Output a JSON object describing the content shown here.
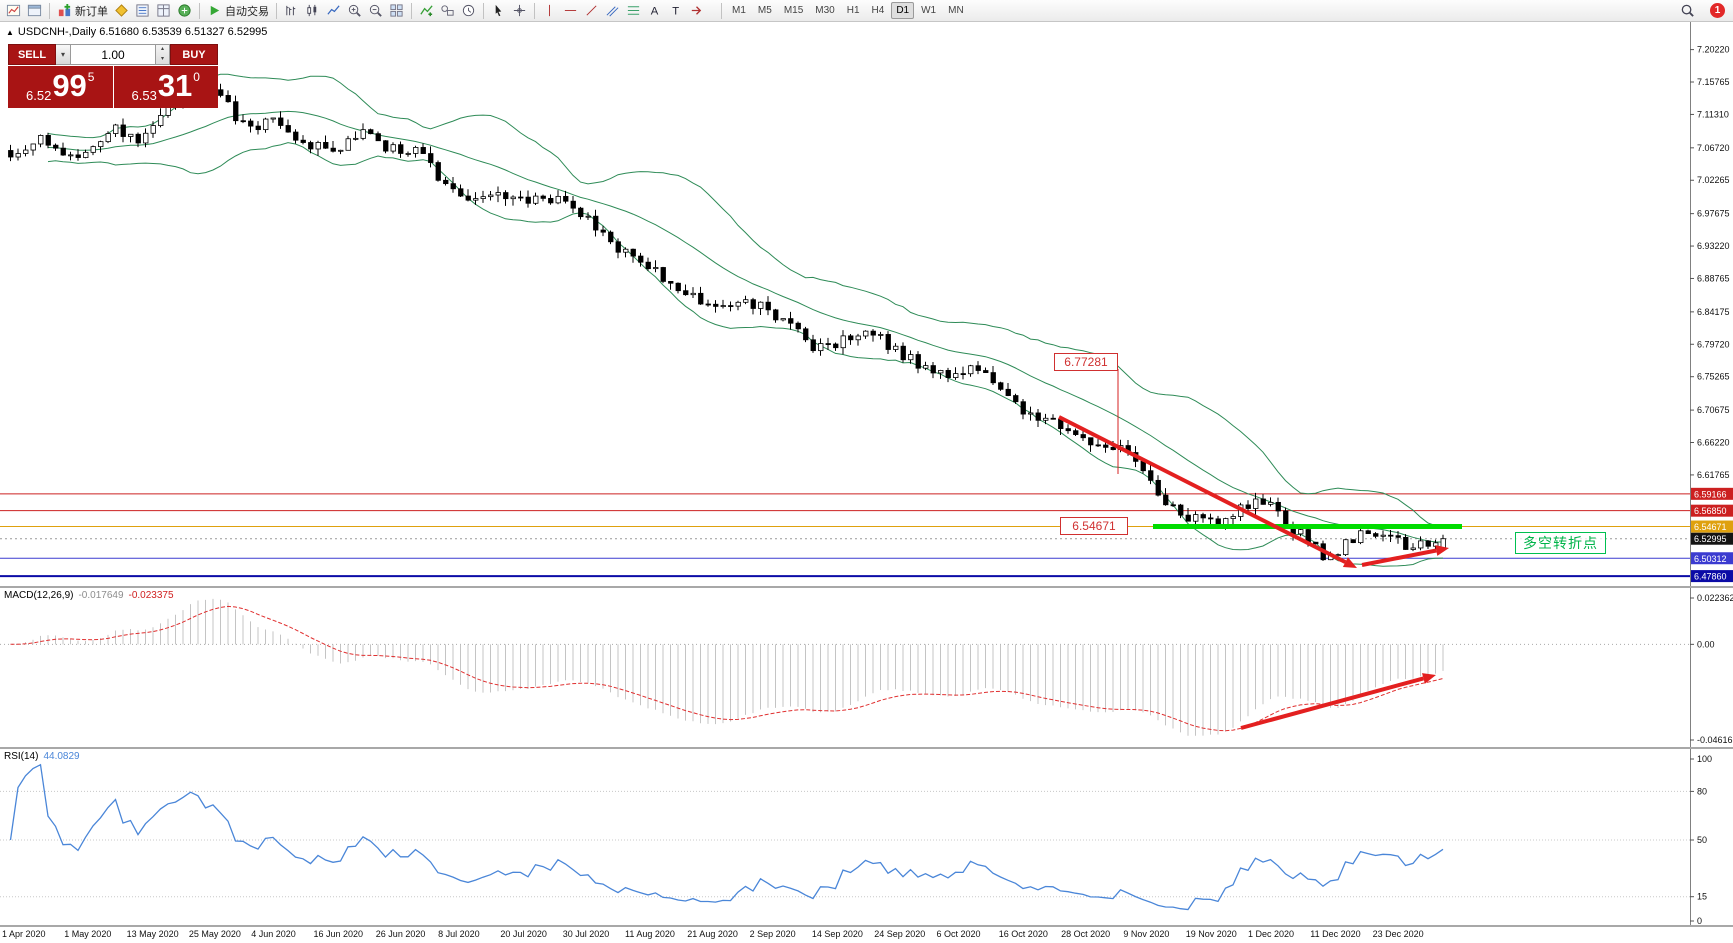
{
  "app": {
    "badge_count": "1"
  },
  "toolbar": {
    "groups": [
      {
        "items": [
          {
            "icon": "new-chart",
            "name": "new-chart-button"
          },
          {
            "icon": "chart-window",
            "name": "chart-profiles-button"
          }
        ]
      },
      {
        "items": [
          {
            "icon": "new-order",
            "name": "new-order-button",
            "label": "新订单"
          },
          {
            "icon": "mql",
            "name": "mql-market-button"
          },
          {
            "icon": "market-watch",
            "name": "market-watch-button"
          },
          {
            "icon": "data-window",
            "name": "data-window-button"
          },
          {
            "icon": "terminal",
            "name": "terminal-button"
          }
        ]
      },
      {
        "items": [
          {
            "icon": "autotrade",
            "name": "auto-trading-button",
            "label": "自动交易"
          }
        ]
      },
      {
        "items": [
          {
            "icon": "bars-type",
            "name": "bar-chart-type-button"
          },
          {
            "icon": "candles-type",
            "name": "candle-chart-type-button"
          },
          {
            "icon": "line-type",
            "name": "line-chart-type-button"
          },
          {
            "icon": "zoom-in",
            "name": "zoom-in-button"
          },
          {
            "icon": "zoom-out",
            "name": "zoom-out-button"
          },
          {
            "icon": "tile-windows",
            "name": "tile-windows-button"
          }
        ]
      },
      {
        "items": [
          {
            "icon": "indicators",
            "name": "indicators-button"
          },
          {
            "icon": "objects",
            "name": "objects-list-button"
          },
          {
            "icon": "clock",
            "name": "period-converter-button"
          }
        ]
      },
      {
        "items": [
          {
            "icon": "cursor",
            "name": "cursor-tool-button"
          },
          {
            "icon": "crosshair",
            "name": "crosshair-tool-button"
          }
        ]
      },
      {
        "items": [
          {
            "icon": "vline",
            "name": "vertical-line-tool-button"
          },
          {
            "icon": "hline",
            "name": "horizontal-line-tool-button"
          },
          {
            "icon": "trendline",
            "name": "trendline-tool-button"
          },
          {
            "icon": "channel",
            "name": "channel-tool-button"
          },
          {
            "icon": "fibo",
            "name": "fibonacci-tool-button"
          },
          {
            "icon": "text",
            "name": "text-tool-button"
          },
          {
            "icon": "label",
            "name": "label-tool-button"
          },
          {
            "icon": "arrows",
            "name": "arrows-tool-button"
          }
        ]
      }
    ],
    "timeframes": [
      "M1",
      "M5",
      "M15",
      "M30",
      "H1",
      "H4",
      "D1",
      "W1",
      "MN"
    ],
    "active_timeframe": "D1"
  },
  "symbol_bar": {
    "collapse_icon": "▲",
    "text": "USDCNH-,Daily 6.51680 6.53539 6.51327 6.52995"
  },
  "trade_panel": {
    "sell_label": "SELL",
    "buy_label": "BUY",
    "volume": "1.00",
    "dropdown_icon": "▾",
    "up_icon": "▴",
    "down_icon": "▾",
    "sell_price": {
      "big": "6.52",
      "large": "99",
      "sup": "5"
    },
    "buy_price": {
      "big": "6.53",
      "large": "31",
      "sup": "0"
    }
  },
  "chart_data": {
    "type": "candlestick",
    "symbol": "USDCNH-",
    "timeframe": "Daily",
    "last_ohlc": {
      "open": 6.5168,
      "high": 6.53539,
      "low": 6.51327,
      "close": 6.52995
    },
    "current_price": 6.52995,
    "num_candles": 192,
    "price_ticks": [
      "7.20220",
      "7.15765",
      "7.11310",
      "7.06720",
      "7.02265",
      "6.97675",
      "6.93220",
      "6.88765",
      "6.84175",
      "6.79720",
      "6.75265",
      "6.70675",
      "6.66220",
      "6.61765"
    ],
    "axis_labels": [
      {
        "text": "6.59166",
        "bg": "#cc2020"
      },
      {
        "text": "6.56850",
        "bg": "#cc2020"
      },
      {
        "text": "6.54671",
        "bg": "#dfa10e"
      },
      {
        "text": "6.52995",
        "bg": "#141414"
      },
      {
        "text": "6.50312",
        "bg": "#3b3bd0"
      },
      {
        "text": "6.47860",
        "bg": "#0b0ba6"
      }
    ],
    "levels": [
      {
        "price": 6.59166,
        "color": "#cc2020",
        "width": 1
      },
      {
        "price": 6.5685,
        "color": "#cc2020",
        "width": 1
      },
      {
        "price": 6.54671,
        "color": "#dfa10e",
        "width": 1
      },
      {
        "price": 6.50312,
        "color": "#3b3bd0",
        "width": 1
      },
      {
        "price": 6.4786,
        "color": "#0b0ba6",
        "width": 2
      }
    ],
    "trend_anchors": [
      [
        0,
        7.062
      ],
      [
        0.02,
        7.08
      ],
      [
        0.04,
        7.05
      ],
      [
        0.055,
        7.065
      ],
      [
        0.075,
        7.095
      ],
      [
        0.09,
        7.075
      ],
      [
        0.11,
        7.125
      ],
      [
        0.13,
        7.155
      ],
      [
        0.15,
        7.13
      ],
      [
        0.165,
        7.09
      ],
      [
        0.185,
        7.105
      ],
      [
        0.205,
        7.075
      ],
      [
        0.225,
        7.065
      ],
      [
        0.245,
        7.09
      ],
      [
        0.26,
        7.07
      ],
      [
        0.285,
        7.06
      ],
      [
        0.3,
        7.022
      ],
      [
        0.32,
        6.998
      ],
      [
        0.34,
        7.01
      ],
      [
        0.36,
        6.99
      ],
      [
        0.38,
        7.0
      ],
      [
        0.4,
        6.972
      ],
      [
        0.42,
        6.935
      ],
      [
        0.44,
        6.912
      ],
      [
        0.46,
        6.88
      ],
      [
        0.48,
        6.858
      ],
      [
        0.5,
        6.843
      ],
      [
        0.52,
        6.855
      ],
      [
        0.54,
        6.83
      ],
      [
        0.56,
        6.79
      ],
      [
        0.58,
        6.8
      ],
      [
        0.6,
        6.815
      ],
      [
        0.615,
        6.79
      ],
      [
        0.635,
        6.768
      ],
      [
        0.655,
        6.752
      ],
      [
        0.675,
        6.765
      ],
      [
        0.695,
        6.722
      ],
      [
        0.715,
        6.7
      ],
      [
        0.735,
        6.685
      ],
      [
        0.755,
        6.66
      ],
      [
        0.775,
        6.65
      ],
      [
        0.79,
        6.625
      ],
      [
        0.805,
        6.58
      ],
      [
        0.82,
        6.56
      ],
      [
        0.84,
        6.548
      ],
      [
        0.86,
        6.575
      ],
      [
        0.875,
        6.585
      ],
      [
        0.89,
        6.55
      ],
      [
        0.905,
        6.528
      ],
      [
        0.918,
        6.505
      ],
      [
        0.932,
        6.522
      ],
      [
        0.948,
        6.54
      ],
      [
        0.962,
        6.528
      ],
      [
        0.978,
        6.518
      ],
      [
        1,
        6.53
      ]
    ],
    "annotations": {
      "prior_high": {
        "text": "6.77281"
      },
      "support": {
        "text": "6.54671",
        "price": 6.54671
      },
      "turning_point": {
        "text": "多空转折点"
      }
    },
    "time_labels": [
      "1 Apr 2020",
      "1 May 2020",
      "13 May 2020",
      "25 May 2020",
      "4 Jun 2020",
      "16 Jun 2020",
      "26 Jun 2020",
      "8 Jul 2020",
      "20 Jul 2020",
      "30 Jul 2020",
      "11 Aug 2020",
      "21 Aug 2020",
      "2 Sep 2020",
      "14 Sep 2020",
      "24 Sep 2020",
      "6 Oct 2020",
      "16 Oct 2020",
      "28 Oct 2020",
      "9 Nov 2020",
      "19 Nov 2020",
      "1 Dec 2020",
      "11 Dec 2020",
      "23 Dec 2020"
    ],
    "indicators": {
      "bollinger": {
        "name": "Bollinger Bands",
        "period": 20,
        "deviation": 2,
        "color": "#2e8b57"
      },
      "macd": {
        "label": "MACD(12,26,9)",
        "value": "-0.017649",
        "signal": "-0.023375",
        "max": 0.022362,
        "min": -0.046165,
        "scale": [
          "0.022362",
          "0.00",
          "-0.046165"
        ]
      },
      "rsi": {
        "label": "RSI(14)",
        "value": "44.0829",
        "levels": [
          80,
          50,
          15
        ],
        "scale": [
          "100",
          "80",
          "50",
          "15",
          "0"
        ]
      }
    }
  }
}
